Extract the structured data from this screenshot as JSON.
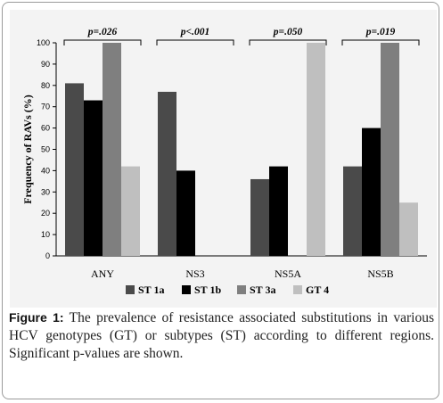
{
  "chart_data": {
    "type": "bar",
    "ylabel": "Frequency of RAVs (%)",
    "ylim": [
      0,
      100
    ],
    "yticks": [
      0,
      10,
      20,
      30,
      40,
      50,
      60,
      70,
      80,
      90,
      100
    ],
    "categories": [
      "ANY",
      "NS3",
      "NS5A",
      "NS5B"
    ],
    "series": [
      {
        "name": "ST 1a",
        "color": "#4a4a4a",
        "values": [
          81,
          77,
          36,
          42
        ]
      },
      {
        "name": "ST 1b",
        "color": "#000000",
        "values": [
          73,
          40,
          42,
          60
        ]
      },
      {
        "name": "ST 3a",
        "color": "#7f7f7f",
        "values": [
          100,
          0,
          0,
          100
        ]
      },
      {
        "name": "GT 4",
        "color": "#bfbfbf",
        "values": [
          42,
          0,
          100,
          25
        ]
      }
    ],
    "annotations": [
      "p=.026",
      "p<.001",
      "p=.050",
      "p=.019"
    ],
    "legend_position": "bottom",
    "grid": false
  },
  "caption": {
    "label": "Figure 1:",
    "text": " The prevalence of resistance associated substitutions in various HCV genotypes (GT) or subtypes (ST) according to different regions. Significant p-values are shown."
  }
}
